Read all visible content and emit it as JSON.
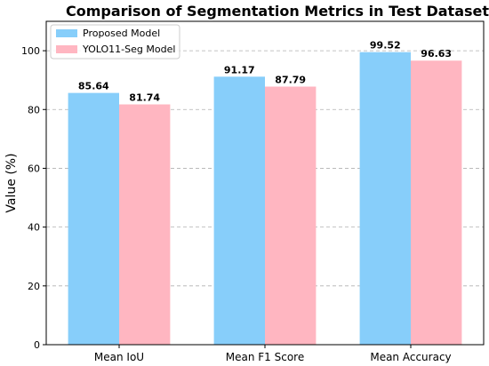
{
  "chart_data": {
    "type": "bar",
    "title": "Comparison of Segmentation Metrics in Test Dataset",
    "xlabel": "",
    "ylabel": "Value (%)",
    "categories": [
      "Mean IoU",
      "Mean F1 Score",
      "Mean Accuracy"
    ],
    "series": [
      {
        "name": "Proposed Model",
        "values": [
          85.64,
          91.17,
          99.52
        ],
        "color": "#87CEFA"
      },
      {
        "name": "YOLO11-Seg Model",
        "values": [
          81.74,
          87.79,
          96.63
        ],
        "color": "#FFB6C1"
      }
    ],
    "ylim": [
      0,
      110
    ],
    "yticks": [
      0,
      20,
      40,
      60,
      80,
      100
    ],
    "grid": "y-dashed",
    "legend_position": "top-left"
  }
}
